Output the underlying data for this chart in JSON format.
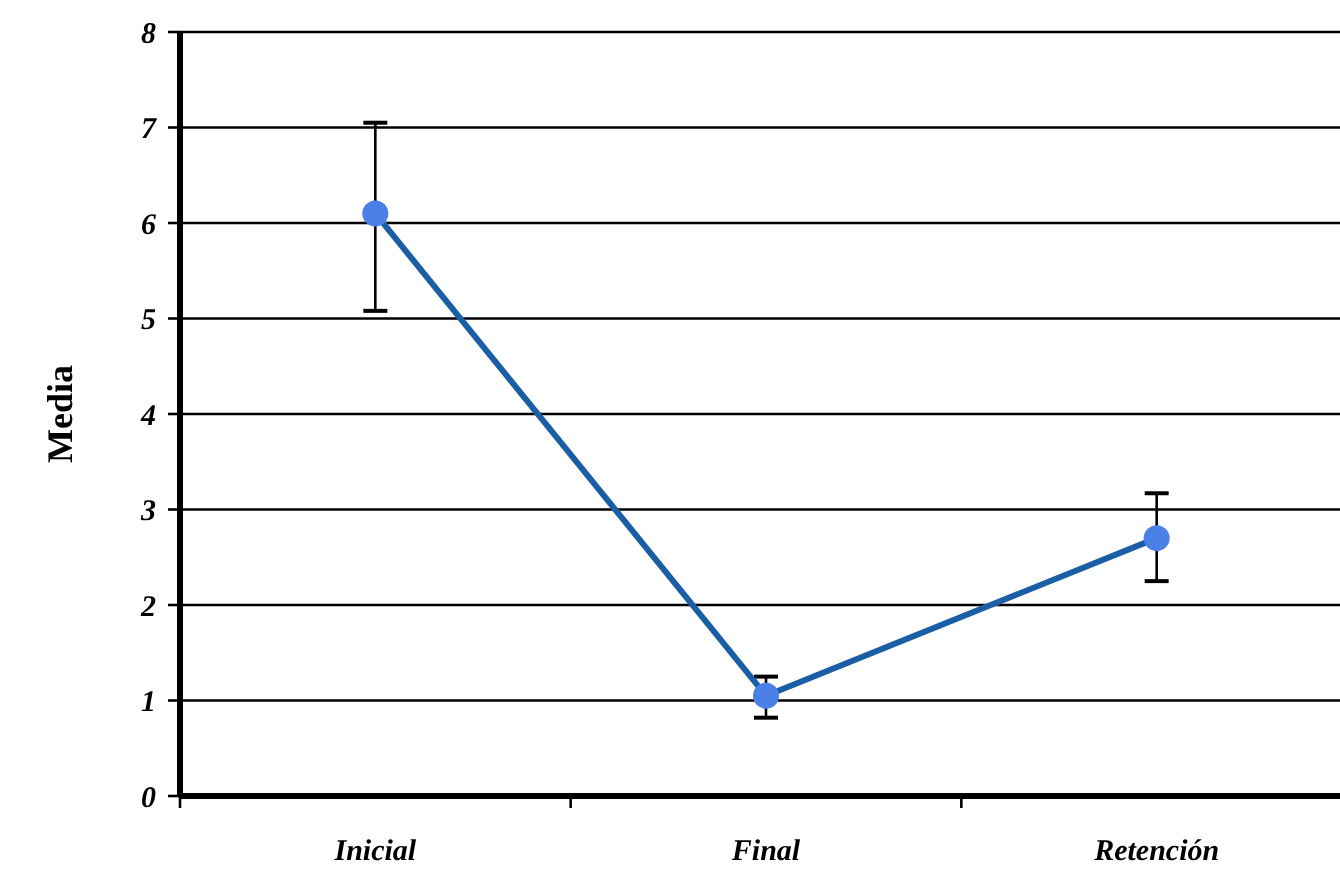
{
  "chart_data": {
    "type": "line",
    "ylabel": "Media",
    "categories": [
      "Inicial",
      "Final",
      "Retención"
    ],
    "series": [
      {
        "color": "#1a5fa6",
        "values": [
          6.1,
          1.05,
          2.7
        ],
        "errors": [
          [
            5.08,
            7.05
          ],
          [
            0.82,
            1.25
          ],
          [
            2.25,
            3.17
          ]
        ]
      }
    ],
    "ylim": [
      0,
      8
    ],
    "yticks": [
      0,
      1,
      2,
      3,
      4,
      5,
      6,
      7,
      8
    ],
    "grid": "y",
    "marker": "circle",
    "line_style": "solid"
  }
}
